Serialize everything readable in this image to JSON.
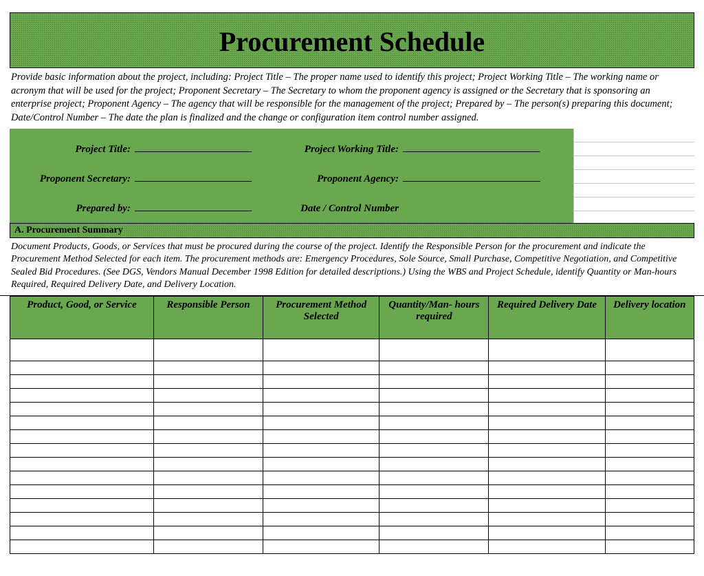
{
  "colors": {
    "green": "#6aa84f",
    "border": "#000000",
    "bg": "#ffffff",
    "light_rule": "#c8c8c8"
  },
  "title": "Procurement Schedule",
  "intro_text": "Provide basic information about the project, including: Project Title – The proper name used to identify this project; Project Working Title – The working name or acronym that will be used for the project; Proponent Secretary – The Secretary to whom the proponent agency is assigned or the Secretary that is sponsoring an enterprise project; Proponent Agency – The agency that will be responsible for the management of the project; Prepared by – The person(s) preparing this document; Date/Control Number – The date the plan is finalized and the change or configuration item control number assigned.",
  "info_fields": {
    "project_title": {
      "label": "Project Title:",
      "value": ""
    },
    "project_working_title": {
      "label": "Project Working Title:",
      "value": ""
    },
    "proponent_secretary": {
      "label": "Proponent Secretary:",
      "value": ""
    },
    "proponent_agency": {
      "label": "Proponent Agency:",
      "value": ""
    },
    "prepared_by": {
      "label": "Prepared by:",
      "value": ""
    },
    "date_control_number": {
      "label": "Date / Control Number",
      "value": ""
    }
  },
  "section_a": {
    "heading": "A.  Procurement Summary",
    "text": "Document Products, Goods, or Services that must be procured during the course of the project.  Identify the Responsible Person for the procurement and indicate the Procurement Method Selected for each item.  The procurement methods are: Emergency Procedures, Sole Source, Small Purchase, Competitive Negotiation, and Competitive Sealed Bid Procedures.  (See DGS, Vendors Manual December 1998 Edition for detailed descriptions.)  Using the WBS and Project Schedule, identify Quantity or Man-hours Required, Required Delivery Date, and Delivery Location."
  },
  "table": {
    "columns": [
      "Product, Good, or Service",
      "Responsible Person",
      "Procurement Method Selected",
      "Quantity/Man- hours required",
      "Required Delivery Date",
      "Delivery location"
    ],
    "column_widths_pct": [
      21,
      16,
      17,
      16,
      17,
      13
    ],
    "empty_row_count": 15,
    "header_bg": "#6aa84f",
    "header_font_style": "italic bold",
    "header_fontsize_pt": 11,
    "cell_border": "#000000"
  },
  "typography": {
    "title_fontsize_pt": 30,
    "body_fontsize_pt": 11,
    "font_family": "Times New Roman"
  }
}
